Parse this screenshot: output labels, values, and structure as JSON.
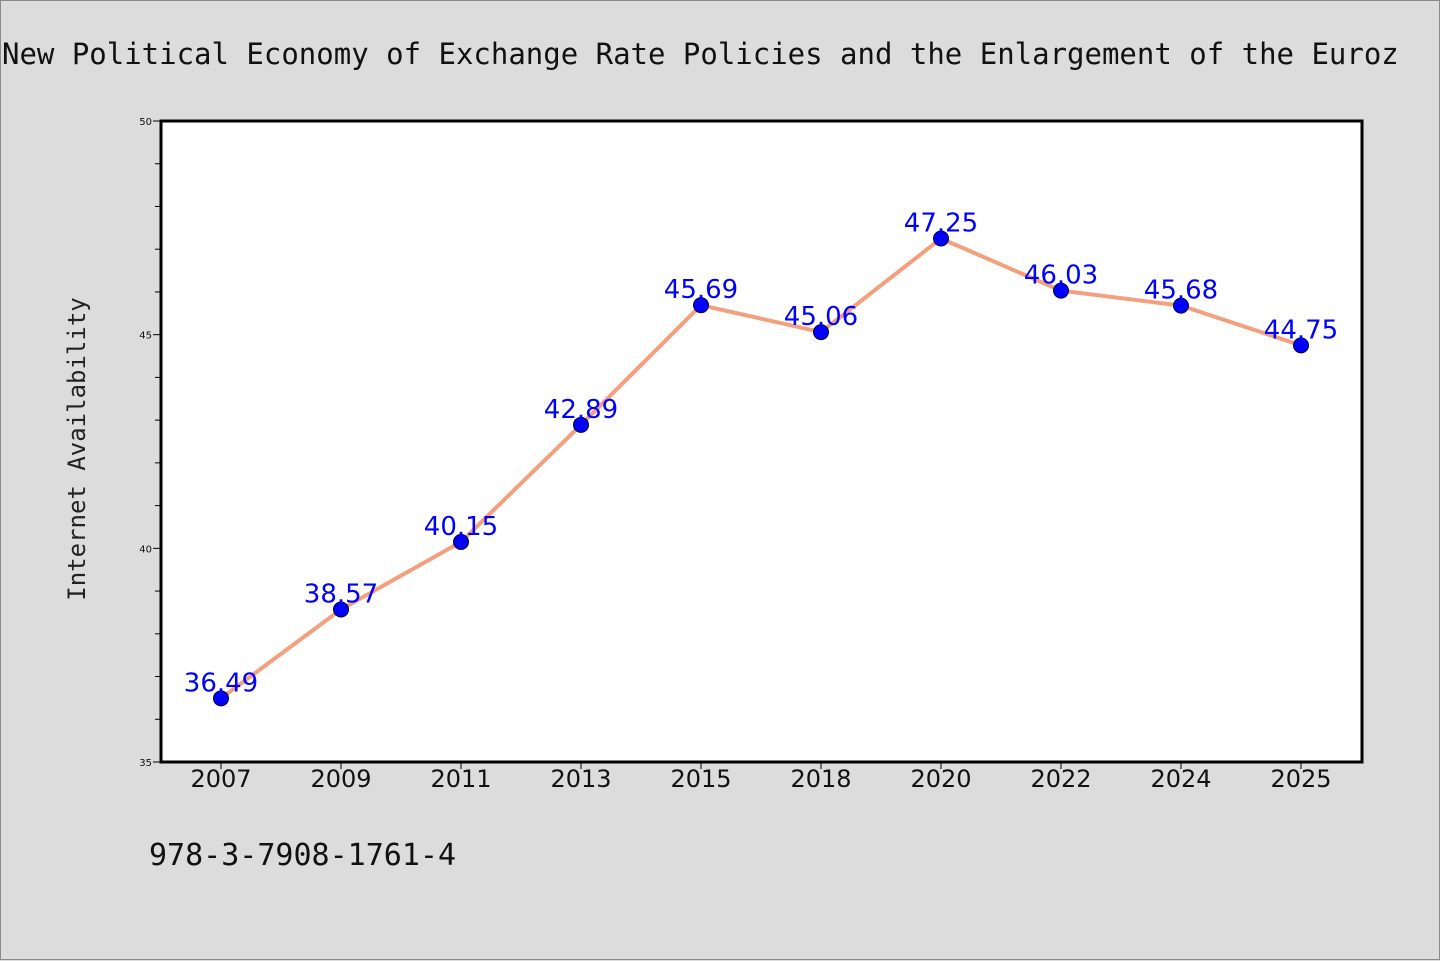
{
  "chart_data": {
    "type": "line",
    "title": "New Political Economy of Exchange Rate Policies and the Enlargement of the Euroz",
    "xlabel": "",
    "ylabel": "Internet Availability",
    "categories": [
      "2007",
      "2009",
      "2011",
      "2013",
      "2015",
      "2018",
      "2020",
      "2022",
      "2024",
      "2025"
    ],
    "series": [
      {
        "values": [
          36.49,
          38.57,
          40.15,
          42.89,
          45.69,
          45.06,
          47.25,
          46.03,
          45.68,
          44.75
        ]
      }
    ],
    "data_labels": [
      "36.49",
      "38.57",
      "40.15",
      "42.89",
      "45.69",
      "45.06",
      "47.25",
      "46.03",
      "45.68",
      "44.75"
    ],
    "ylim": [
      35,
      50
    ],
    "yticks": [
      35,
      40,
      45,
      50
    ],
    "grid": false,
    "colors": {
      "line": "#f4a07e",
      "marker": "#0000ff",
      "label": "#0000ff",
      "background": "#dcdcdc",
      "plot_area": "#ffffff"
    }
  },
  "footnote": "978-3-7908-1761-4"
}
